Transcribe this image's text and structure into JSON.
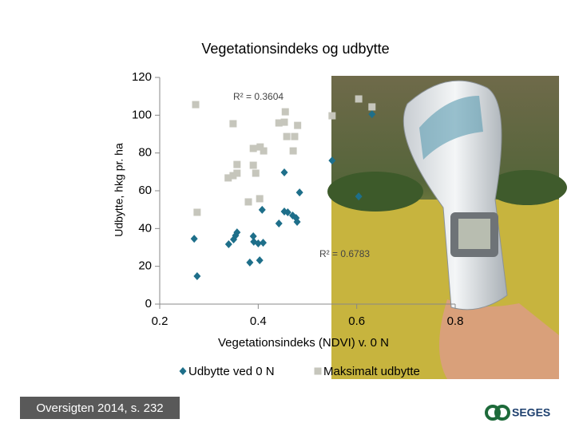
{
  "chart_data": {
    "type": "scatter",
    "title": "Vegetationsindeks og udbytte",
    "x_label": "Vegetationsindeks (NDVI) v. 0 N",
    "y_label": "Udbytte, hkg pr. ha",
    "xlim": [
      0.2,
      0.8
    ],
    "xticks": [
      0.2,
      0.4,
      0.6,
      0.8
    ],
    "ylim": [
      0,
      120
    ],
    "yticks": [
      0,
      20,
      40,
      60,
      80,
      100,
      120
    ],
    "grid": false,
    "series": [
      {
        "name": "Udbytte ved 0 N",
        "color": "#1e6f8a",
        "marker": "diamond",
        "x": [
          0.27,
          0.276,
          0.34,
          0.35,
          0.354,
          0.357,
          0.383,
          0.39,
          0.391,
          0.4,
          0.41,
          0.403,
          0.408,
          0.442,
          0.453,
          0.453,
          0.46,
          0.47,
          0.477,
          0.479,
          0.484,
          0.55,
          0.604,
          0.631
        ],
        "y": [
          34.6,
          14.8,
          31.7,
          34.2,
          36.3,
          38.0,
          22.0,
          35.9,
          33.0,
          32.1,
          32.5,
          23.2,
          49.9,
          42.7,
          69.7,
          49.0,
          48.6,
          46.9,
          45.6,
          43.5,
          59.1,
          76.0,
          57.0,
          100.5
        ]
      },
      {
        "name": "Maksimalt udbytte",
        "color": "#c6c6bc",
        "marker": "square",
        "x": [
          0.273,
          0.276,
          0.349,
          0.339,
          0.349,
          0.357,
          0.357,
          0.38,
          0.39,
          0.395,
          0.403,
          0.39,
          0.404,
          0.411,
          0.442,
          0.455,
          0.453,
          0.458,
          0.474,
          0.471,
          0.48,
          0.55,
          0.604,
          0.631
        ],
        "y": [
          105.6,
          48.6,
          95.5,
          66.8,
          68.0,
          73.9,
          69.3,
          54.1,
          73.5,
          69.3,
          55.8,
          82.4,
          83.2,
          81.1,
          95.9,
          101.8,
          96.3,
          88.7,
          88.7,
          81.1,
          94.6,
          99.7,
          108.6,
          104.4
        ]
      }
    ],
    "annotations": [
      "R² = 0.3604",
      "R² = 0.6783"
    ]
  },
  "footer": {
    "source": "Oversigten 2014, s. 232",
    "logo": "SEGES"
  }
}
